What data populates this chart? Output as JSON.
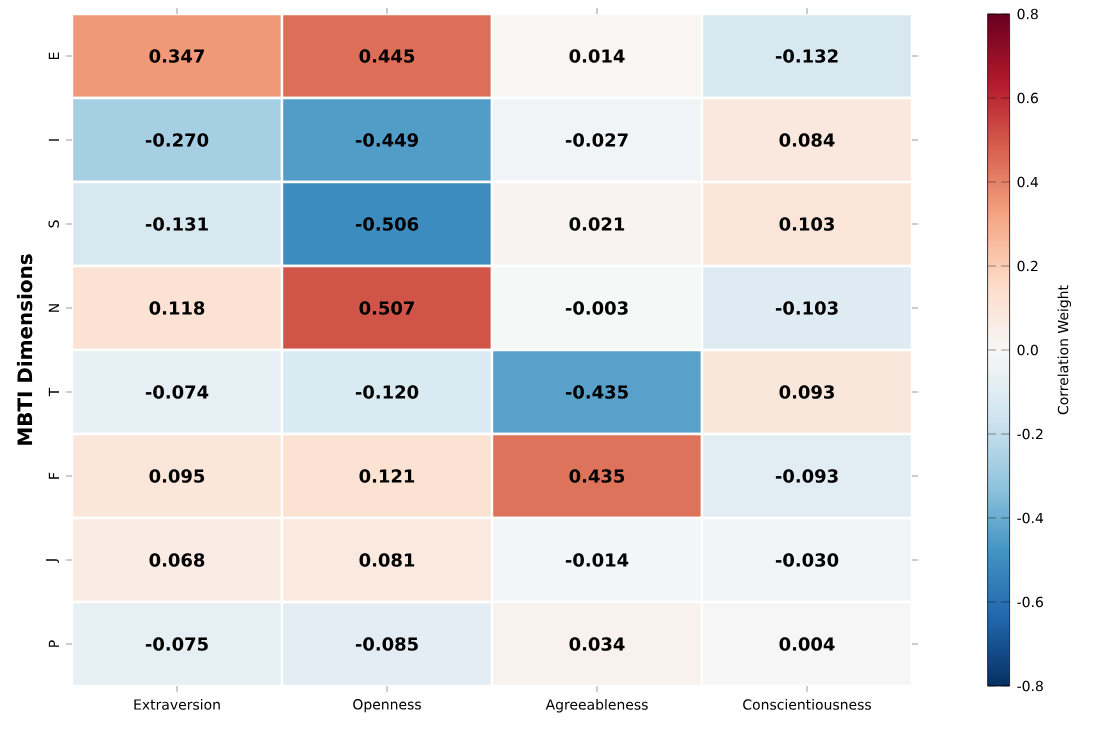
{
  "chart_data": {
    "type": "heatmap",
    "ylabel": "MBTI Dimensions",
    "clabel": "Correlation Weight",
    "categories": [
      "Extraversion",
      "Openness",
      "Agreeableness",
      "Conscientiousness"
    ],
    "y_categories": [
      "E",
      "I",
      "S",
      "N",
      "T",
      "F",
      "J",
      "P"
    ],
    "cells": [
      [
        0.347,
        0.445,
        0.014,
        -0.132
      ],
      [
        -0.27,
        -0.449,
        -0.027,
        0.084
      ],
      [
        -0.131,
        -0.506,
        0.021,
        0.103
      ],
      [
        0.118,
        0.507,
        -0.003,
        -0.103
      ],
      [
        -0.074,
        -0.12,
        -0.435,
        0.093
      ],
      [
        0.095,
        0.121,
        0.435,
        -0.093
      ],
      [
        0.068,
        0.081,
        -0.014,
        -0.03
      ],
      [
        -0.075,
        -0.085,
        0.034,
        0.004
      ]
    ],
    "cell_labels": [
      [
        "0.347",
        "0.445",
        "0.014",
        "-0.132"
      ],
      [
        "-0.270",
        "-0.449",
        "-0.027",
        "0.084"
      ],
      [
        "-0.131",
        "-0.506",
        "0.021",
        "0.103"
      ],
      [
        "0.118",
        "0.507",
        "-0.003",
        "-0.103"
      ],
      [
        "-0.074",
        "-0.120",
        "-0.435",
        "0.093"
      ],
      [
        "0.095",
        "0.121",
        "0.435",
        "-0.093"
      ],
      [
        "0.068",
        "0.081",
        "-0.014",
        "-0.030"
      ],
      [
        "-0.075",
        "-0.085",
        "0.034",
        "0.004"
      ]
    ],
    "clim": [
      -0.8,
      0.8
    ],
    "cticks": [
      -0.8,
      -0.6,
      -0.4,
      -0.2,
      {
        "value": 0,
        "label": "0.0"
      },
      0.2,
      0.4,
      0.6,
      0.8
    ]
  }
}
